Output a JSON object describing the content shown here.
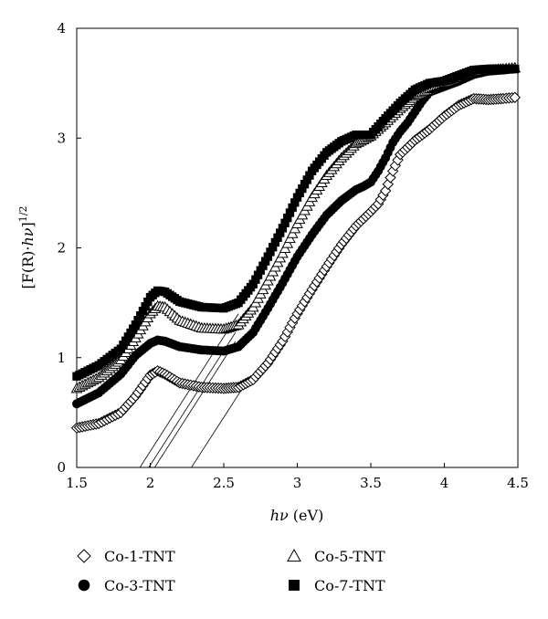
{
  "chart_data": {
    "type": "scatter",
    "title": "",
    "xlabel": "hν (eV)",
    "ylabel": "[F(R)·hν]^1/2",
    "xlim": [
      1.5,
      4.5
    ],
    "ylim": [
      0,
      4
    ],
    "xticks": [
      "1.5",
      "2",
      "2.5",
      "3",
      "3.5",
      "4",
      "4.5"
    ],
    "yticks": [
      "0",
      "1",
      "2",
      "3",
      "4"
    ],
    "grid": false,
    "legend_position": "bottom",
    "series": [
      {
        "name": "Co-1-TNT",
        "marker": "open-diamond",
        "points": [
          [
            1.5,
            0.36
          ],
          [
            1.65,
            0.4
          ],
          [
            1.8,
            0.5
          ],
          [
            1.9,
            0.65
          ],
          [
            2.0,
            0.84
          ],
          [
            2.05,
            0.88
          ],
          [
            2.1,
            0.85
          ],
          [
            2.2,
            0.77
          ],
          [
            2.35,
            0.73
          ],
          [
            2.5,
            0.72
          ],
          [
            2.6,
            0.73
          ],
          [
            2.7,
            0.8
          ],
          [
            2.8,
            0.95
          ],
          [
            2.9,
            1.15
          ],
          [
            3.0,
            1.4
          ],
          [
            3.1,
            1.62
          ],
          [
            3.2,
            1.83
          ],
          [
            3.3,
            2.03
          ],
          [
            3.4,
            2.2
          ],
          [
            3.5,
            2.33
          ],
          [
            3.55,
            2.4
          ],
          [
            3.6,
            2.52
          ],
          [
            3.65,
            2.7
          ],
          [
            3.7,
            2.85
          ],
          [
            3.8,
            2.98
          ],
          [
            3.9,
            3.08
          ],
          [
            4.0,
            3.2
          ],
          [
            4.1,
            3.3
          ],
          [
            4.2,
            3.36
          ],
          [
            4.3,
            3.35
          ],
          [
            4.4,
            3.36
          ],
          [
            4.48,
            3.37
          ]
        ]
      },
      {
        "name": "Co-3-TNT",
        "marker": "filled-circle",
        "points": [
          [
            1.5,
            0.58
          ],
          [
            1.65,
            0.68
          ],
          [
            1.8,
            0.85
          ],
          [
            1.9,
            1.02
          ],
          [
            2.0,
            1.13
          ],
          [
            2.05,
            1.16
          ],
          [
            2.1,
            1.15
          ],
          [
            2.2,
            1.1
          ],
          [
            2.35,
            1.07
          ],
          [
            2.5,
            1.06
          ],
          [
            2.6,
            1.1
          ],
          [
            2.7,
            1.23
          ],
          [
            2.8,
            1.45
          ],
          [
            2.9,
            1.68
          ],
          [
            3.0,
            1.92
          ],
          [
            3.1,
            2.12
          ],
          [
            3.2,
            2.3
          ],
          [
            3.3,
            2.43
          ],
          [
            3.4,
            2.53
          ],
          [
            3.45,
            2.56
          ],
          [
            3.5,
            2.6
          ],
          [
            3.55,
            2.7
          ],
          [
            3.6,
            2.82
          ],
          [
            3.65,
            2.96
          ],
          [
            3.7,
            3.06
          ],
          [
            3.75,
            3.14
          ],
          [
            3.8,
            3.24
          ],
          [
            3.85,
            3.34
          ],
          [
            3.9,
            3.42
          ],
          [
            4.0,
            3.47
          ],
          [
            4.1,
            3.52
          ],
          [
            4.2,
            3.58
          ],
          [
            4.3,
            3.61
          ],
          [
            4.4,
            3.62
          ],
          [
            4.48,
            3.63
          ]
        ]
      },
      {
        "name": "Co-5-TNT",
        "marker": "open-triangle",
        "points": [
          [
            1.5,
            0.72
          ],
          [
            1.65,
            0.82
          ],
          [
            1.8,
            0.98
          ],
          [
            1.9,
            1.18
          ],
          [
            2.0,
            1.4
          ],
          [
            2.05,
            1.47
          ],
          [
            2.1,
            1.46
          ],
          [
            2.2,
            1.34
          ],
          [
            2.35,
            1.27
          ],
          [
            2.5,
            1.26
          ],
          [
            2.6,
            1.3
          ],
          [
            2.7,
            1.46
          ],
          [
            2.8,
            1.7
          ],
          [
            2.9,
            1.95
          ],
          [
            3.0,
            2.22
          ],
          [
            3.1,
            2.46
          ],
          [
            3.2,
            2.66
          ],
          [
            3.3,
            2.82
          ],
          [
            3.4,
            2.95
          ],
          [
            3.5,
            3.02
          ],
          [
            3.6,
            3.14
          ],
          [
            3.7,
            3.27
          ],
          [
            3.8,
            3.38
          ],
          [
            3.9,
            3.45
          ],
          [
            4.0,
            3.5
          ],
          [
            4.1,
            3.56
          ],
          [
            4.2,
            3.6
          ],
          [
            4.3,
            3.62
          ],
          [
            4.4,
            3.63
          ],
          [
            4.48,
            3.64
          ]
        ]
      },
      {
        "name": "Co-7-TNT",
        "marker": "filled-square",
        "points": [
          [
            1.5,
            0.83
          ],
          [
            1.65,
            0.93
          ],
          [
            1.8,
            1.08
          ],
          [
            1.9,
            1.3
          ],
          [
            2.0,
            1.55
          ],
          [
            2.05,
            1.61
          ],
          [
            2.1,
            1.6
          ],
          [
            2.2,
            1.51
          ],
          [
            2.35,
            1.46
          ],
          [
            2.5,
            1.45
          ],
          [
            2.6,
            1.5
          ],
          [
            2.7,
            1.67
          ],
          [
            2.8,
            1.92
          ],
          [
            2.9,
            2.18
          ],
          [
            3.0,
            2.46
          ],
          [
            3.1,
            2.7
          ],
          [
            3.2,
            2.87
          ],
          [
            3.3,
            2.97
          ],
          [
            3.4,
            3.03
          ],
          [
            3.5,
            3.03
          ],
          [
            3.6,
            3.18
          ],
          [
            3.7,
            3.32
          ],
          [
            3.8,
            3.44
          ],
          [
            3.9,
            3.5
          ],
          [
            4.0,
            3.52
          ],
          [
            4.1,
            3.57
          ],
          [
            4.2,
            3.62
          ],
          [
            4.3,
            3.63
          ],
          [
            4.4,
            3.63
          ],
          [
            4.48,
            3.63
          ]
        ]
      }
    ],
    "tangent_lines": [
      {
        "x": [
          1.93,
          2.6
        ],
        "y": [
          0,
          1.4
        ]
      },
      {
        "x": [
          1.99,
          2.58
        ],
        "y": [
          0,
          1.23
        ]
      },
      {
        "x": [
          2.03,
          2.58
        ],
        "y": [
          0,
          1.15
        ]
      },
      {
        "x": [
          2.28,
          2.68
        ],
        "y": [
          0,
          0.83
        ]
      }
    ]
  }
}
